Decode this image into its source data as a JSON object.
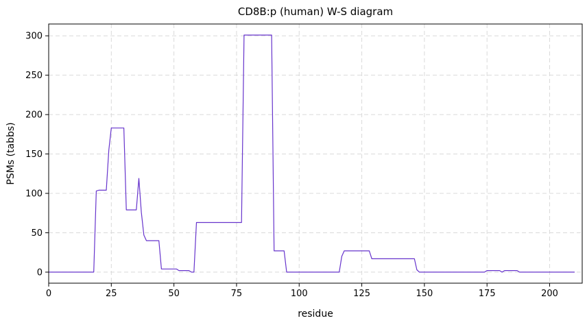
{
  "chart_data": {
    "type": "line",
    "title": "CD8B:p (human) W-S diagram",
    "xlabel": "residue",
    "ylabel": "PSMs (tabbs)",
    "xlim": [
      0,
      213
    ],
    "ylim": [
      -14,
      315
    ],
    "xticks": [
      0,
      25,
      50,
      75,
      100,
      125,
      150,
      175,
      200
    ],
    "yticks": [
      0,
      50,
      100,
      150,
      200,
      250,
      300
    ],
    "grid": true,
    "line_color": "#6633cc",
    "series": [
      {
        "x": [
          0,
          18,
          19,
          20,
          23,
          24,
          25,
          26,
          30,
          31,
          35,
          36,
          37,
          38,
          39,
          44,
          45,
          50,
          51,
          52,
          56,
          57,
          58,
          59,
          60,
          77,
          78,
          80,
          89,
          90,
          94,
          95,
          100,
          110,
          116,
          117,
          118,
          120,
          128,
          129,
          140,
          146,
          147,
          148,
          150,
          170,
          174,
          175,
          180,
          181,
          182,
          187,
          188,
          190,
          210
        ],
        "y": [
          0,
          0,
          103,
          104,
          104,
          155,
          183,
          183,
          183,
          79,
          79,
          119,
          76,
          47,
          40,
          40,
          4,
          4,
          4,
          2,
          2,
          0,
          0,
          63,
          63,
          63,
          301,
          301,
          301,
          27,
          27,
          0,
          0,
          0,
          0,
          20,
          27,
          27,
          27,
          17,
          17,
          17,
          3,
          0,
          0,
          0,
          0,
          2,
          2,
          0,
          2,
          2,
          0,
          0,
          0
        ]
      }
    ]
  }
}
